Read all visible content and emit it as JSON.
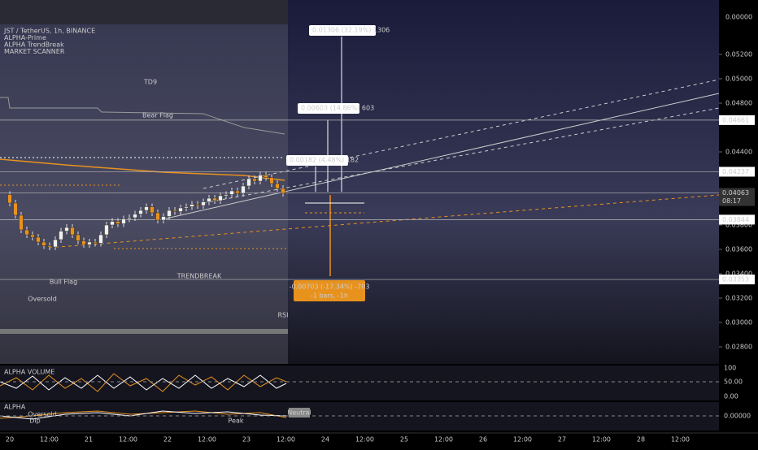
{
  "legend": [
    "JST / TetherUS, 1h, BINANCE",
    "ALPHA-Prime",
    "ALPHA TrendBreak",
    "MARKET SCANNER"
  ],
  "price_axis": {
    "ticks": [
      {
        "value": 0.052,
        "label": "0.05200"
      },
      {
        "value": 0.05,
        "label": "0.05000"
      },
      {
        "value": 0.048,
        "label": "0.04800"
      },
      {
        "value": 0.044,
        "label": "0.04400"
      },
      {
        "value": 0.038,
        "label": "0.03800"
      },
      {
        "value": 0.036,
        "label": "0.03600"
      },
      {
        "value": 0.034,
        "label": "0.03400"
      },
      {
        "value": 0.032,
        "label": "0.03200"
      },
      {
        "value": 0.03,
        "label": "0.03000"
      },
      {
        "value": 0.028,
        "label": "0.02800"
      }
    ],
    "top_label": "0.00000",
    "tags": [
      {
        "value": 0.04661,
        "label": "0.04661"
      },
      {
        "value": 0.04237,
        "label": "0.04237"
      },
      {
        "value": 0.04063,
        "label": "0.04063"
      },
      {
        "value": 0.03844,
        "label": "0.03844"
      },
      {
        "value": 0.03353,
        "label": "0.03353"
      }
    ],
    "countdown": "08:17"
  },
  "time_axis": [
    "20",
    "12:00",
    "21",
    "12:00",
    "22",
    "12:00",
    "23",
    "12:00",
    "24",
    "12:00",
    "25",
    "12:00",
    "26",
    "12:00",
    "27",
    "12:00",
    "28",
    "12:00"
  ],
  "closes": [
    0.0405,
    0.0398,
    0.0388,
    0.0376,
    0.0372,
    0.037,
    0.0366,
    0.0363,
    0.0362,
    0.0368,
    0.0375,
    0.0378,
    0.0372,
    0.0367,
    0.0364,
    0.0366,
    0.0365,
    0.0372,
    0.038,
    0.0383,
    0.0381,
    0.0385,
    0.0386,
    0.0389,
    0.0392,
    0.0395,
    0.039,
    0.0384,
    0.0387,
    0.0392,
    0.0391,
    0.0394,
    0.0395,
    0.0397,
    0.0396,
    0.0399,
    0.0402,
    0.04,
    0.0404,
    0.0405,
    0.0408,
    0.0406,
    0.0412,
    0.0418,
    0.0416,
    0.0421,
    0.0419,
    0.0414,
    0.041,
    0.0406
  ],
  "annotations": {
    "td9": "TD9",
    "bear_flag": "Bear Flag",
    "bull_flag": "Bull Flag",
    "oversold": "Oversold",
    "trendbreak": "TRENDBREAK",
    "rsi": "RSI",
    "peak": "Peak",
    "dip": "Dip",
    "neutral": "Neutral"
  },
  "measures": [
    "0.01306 (32.19%) 1306",
    "0.00603 (14.86%) 603",
    "0.00182 (4.48%) 182"
  ],
  "down_measure": [
    "-0.00703 (-17.34%) -703",
    "-1 bars, -1h"
  ],
  "volume_pane": {
    "title": "ALPHA VOLUME",
    "ticks": [
      "100",
      "50.00",
      "0.00"
    ]
  },
  "osc_pane": {
    "title": "ALPHA",
    "tick": "0.00000"
  }
}
